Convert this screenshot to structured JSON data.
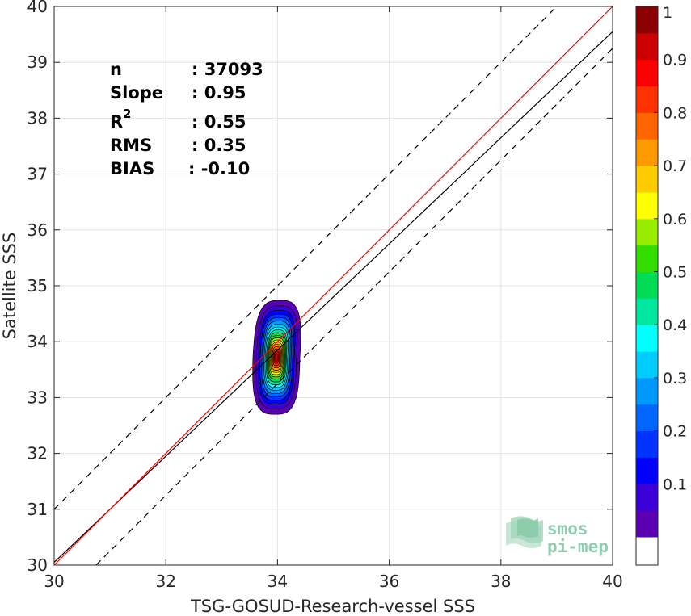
{
  "chart_data": {
    "type": "scatter",
    "title": "",
    "xlabel": "TSG-GOSUD-Research-vessel SSS",
    "ylabel": "Satellite SSS",
    "xlim": [
      30,
      40
    ],
    "ylim": [
      30,
      40
    ],
    "xticks": [
      "30",
      "32",
      "34",
      "36",
      "38",
      "40"
    ],
    "yticks": [
      "30",
      "31",
      "32",
      "33",
      "34",
      "35",
      "36",
      "37",
      "38",
      "39",
      "40"
    ],
    "grid": true,
    "stats": {
      "n_label": "n",
      "n_value": ": 37093",
      "slope_label": "Slope",
      "slope_value": ": 0.95",
      "r2_label": "R",
      "r2_sup": "2",
      "r2_value": ": 0.55",
      "rms_label": "RMS",
      "rms_value": ": 0.35",
      "bias_label": "BIAS",
      "bias_value": ": -0.10"
    },
    "lines": {
      "identity": {
        "slope": 1,
        "intercept": 0,
        "color": "#ff0000"
      },
      "fit": {
        "slope": 0.95,
        "intercept": 1.55,
        "color": "#000000"
      },
      "upper_bound": {
        "slope": 1,
        "intercept": 1,
        "style": "dashed",
        "color": "#000000"
      },
      "lower_bound": {
        "slope": 1,
        "intercept": -0.75,
        "style": "dashed",
        "color": "#000000"
      }
    },
    "density_contours": {
      "center": [
        33.98,
        33.72
      ],
      "levels": [
        {
          "level": 0.05,
          "hx": 0.42,
          "hy": 1.02,
          "color": "#5b00b2"
        },
        {
          "level": 0.1,
          "hx": 0.36,
          "hy": 0.92,
          "color": "#3b00d8"
        },
        {
          "level": 0.15,
          "hx": 0.32,
          "hy": 0.84,
          "color": "#0000ff"
        },
        {
          "level": 0.2,
          "hx": 0.29,
          "hy": 0.77,
          "color": "#0033ff"
        },
        {
          "level": 0.25,
          "hx": 0.26,
          "hy": 0.71,
          "color": "#0066ff"
        },
        {
          "level": 0.3,
          "hx": 0.24,
          "hy": 0.65,
          "color": "#0099ff"
        },
        {
          "level": 0.35,
          "hx": 0.22,
          "hy": 0.59,
          "color": "#00ccff"
        },
        {
          "level": 0.4,
          "hx": 0.2,
          "hy": 0.54,
          "color": "#00ffff"
        },
        {
          "level": 0.45,
          "hx": 0.18,
          "hy": 0.49,
          "color": "#00e8a0"
        },
        {
          "level": 0.5,
          "hx": 0.165,
          "hy": 0.44,
          "color": "#00dd55"
        },
        {
          "level": 0.55,
          "hx": 0.15,
          "hy": 0.39,
          "color": "#33dd00"
        },
        {
          "level": 0.6,
          "hx": 0.135,
          "hy": 0.35,
          "color": "#99ee00"
        },
        {
          "level": 0.65,
          "hx": 0.12,
          "hy": 0.31,
          "color": "#ffff00"
        },
        {
          "level": 0.7,
          "hx": 0.105,
          "hy": 0.27,
          "color": "#ffcc00"
        },
        {
          "level": 0.75,
          "hx": 0.09,
          "hy": 0.23,
          "color": "#ff9900"
        },
        {
          "level": 0.8,
          "hx": 0.075,
          "hy": 0.19,
          "color": "#ff6600"
        },
        {
          "level": 0.85,
          "hx": 0.06,
          "hy": 0.15,
          "color": "#ff3300"
        },
        {
          "level": 0.9,
          "hx": 0.045,
          "hy": 0.11,
          "color": "#ff0000"
        },
        {
          "level": 0.95,
          "hx": 0.03,
          "hy": 0.07,
          "color": "#cc0000"
        }
      ]
    },
    "colorbar": {
      "ticks": [
        "0.1",
        "0.2",
        "0.3",
        "0.4",
        "0.5",
        "0.6",
        "0.7",
        "0.8",
        "0.9",
        "1"
      ],
      "bands": [
        "#5b00b2",
        "#3b00d8",
        "#0000ff",
        "#0033ff",
        "#0066ff",
        "#0099ff",
        "#00ccff",
        "#00ffff",
        "#00e8a0",
        "#00dd55",
        "#33dd00",
        "#99ee00",
        "#ffff00",
        "#ffcc00",
        "#ff9900",
        "#ff6600",
        "#ff3300",
        "#ff0000",
        "#cc0000",
        "#8b0000"
      ],
      "below_color": "#ffffff"
    }
  },
  "logo": {
    "line1": "smos",
    "line2": "pi-mep",
    "color": "#8fcdb0"
  }
}
